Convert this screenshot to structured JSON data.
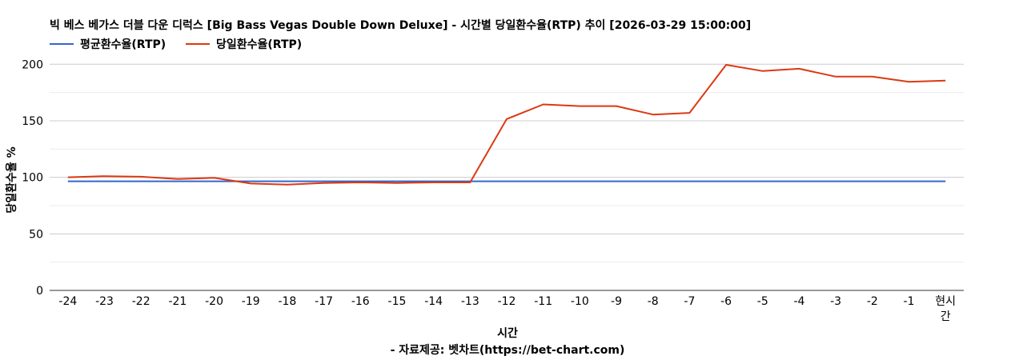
{
  "chart_data": {
    "type": "line",
    "title": "빅 베스 베가스 더블 다운 디럭스 [Big Bass Vegas Double Down Deluxe] - 시간별 당일환수율(RTP) 추이 [2026-03-29 15:00:00]",
    "xlabel": "시간",
    "ylabel": "당일환수율 %",
    "source": "- 자료제공: 벳차트(https://bet-chart.com)",
    "categories": [
      "-24",
      "-23",
      "-22",
      "-21",
      "-20",
      "-19",
      "-18",
      "-17",
      "-16",
      "-15",
      "-14",
      "-13",
      "-12",
      "-11",
      "-10",
      "-9",
      "-8",
      "-7",
      "-6",
      "-5",
      "-4",
      "-3",
      "-2",
      "-1",
      "현시간"
    ],
    "series": [
      {
        "name": "평균환수율(RTP)",
        "color": "#3366cc",
        "values": [
          96.5,
          96.5,
          96.5,
          96.5,
          96.5,
          96.5,
          96.5,
          96.5,
          96.5,
          96.5,
          96.5,
          96.5,
          96.5,
          96.5,
          96.5,
          96.5,
          96.5,
          96.5,
          96.5,
          96.5,
          96.5,
          96.5,
          96.5,
          96.5,
          96.5
        ]
      },
      {
        "name": "당일환수율(RTP)",
        "color": "#dc3912",
        "values": [
          100,
          101,
          100.5,
          98.5,
          99.5,
          94.5,
          93.5,
          95,
          95.5,
          95,
          95.5,
          95.5,
          151.5,
          164.5,
          163,
          163,
          155.5,
          157,
          199.5,
          194,
          196,
          189,
          189,
          184.5,
          185.5
        ]
      }
    ],
    "ylim": [
      0,
      220
    ],
    "yticks": [
      "0",
      "50",
      "100",
      "150",
      "200"
    ],
    "grid": true,
    "legend_position": "top-left"
  }
}
